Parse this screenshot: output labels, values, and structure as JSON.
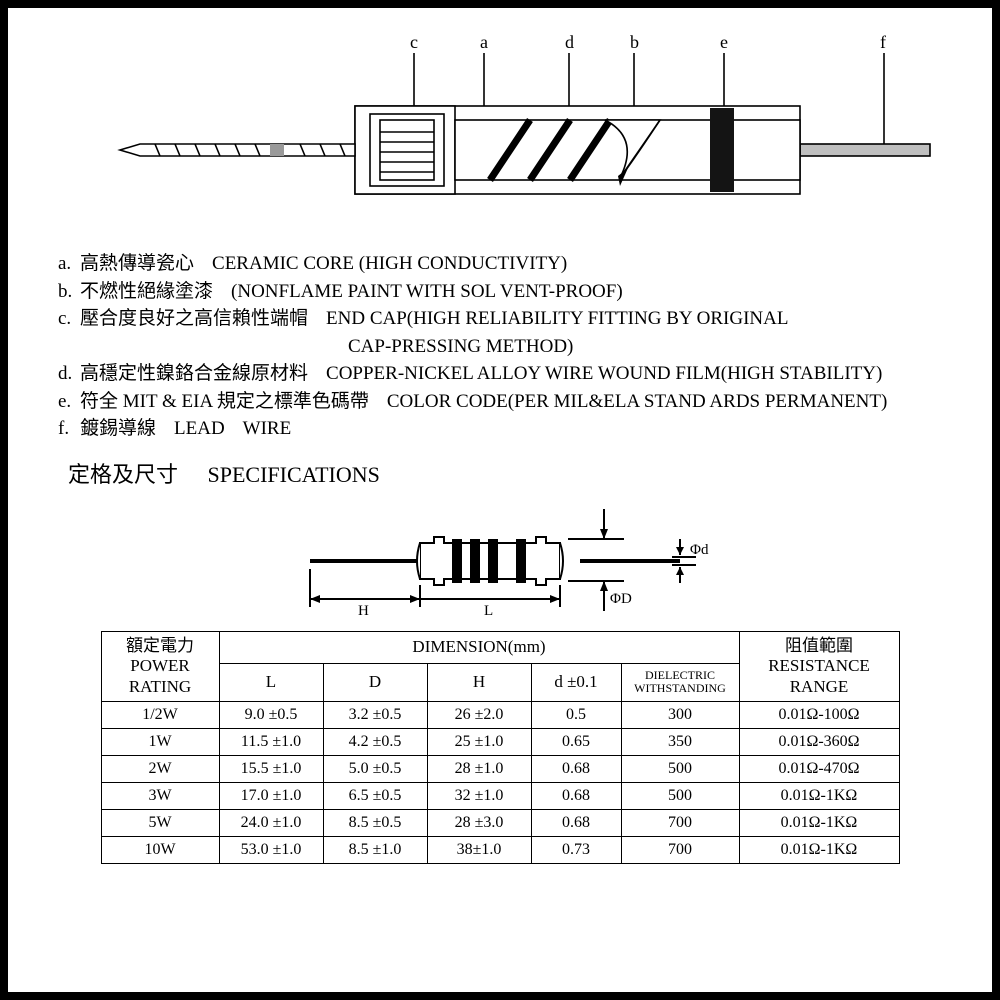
{
  "diagram": {
    "labels": {
      "a": "a",
      "b": "b",
      "c": "c",
      "d": "d",
      "e": "e",
      "f": "f"
    },
    "colors": {
      "body_fill": "#ffffff",
      "cap_fill": "#ffffff",
      "lead_fill": "#bfbfbf",
      "band_dark": "#141414",
      "stroke": "#000000"
    }
  },
  "legend": {
    "a": {
      "key": "a.",
      "cn": "高熱傳導瓷心",
      "en": "CERAMIC CORE (HIGH CONDUCTIVITY)"
    },
    "b": {
      "key": "b.",
      "cn": "不燃性絕緣塗漆",
      "en": "(NONFLAME PAINT WITH SOL VENT-PROOF)"
    },
    "c": {
      "key": "c.",
      "cn": "壓合度良好之高信賴性端帽",
      "en": "END CAP(HIGH RELIABILITY FITTING BY ORIGINAL",
      "en2": "CAP-PRESSING METHOD)"
    },
    "d": {
      "key": "d.",
      "cn": "高穩定性鎳鉻合金線原材料",
      "en": "COPPER-NICKEL ALLOY WIRE WOUND FILM(HIGH STABILITY)"
    },
    "e": {
      "key": "e.",
      "cn": "符全 MIT & EIA 規定之標準色碼帶",
      "en": "COLOR CODE(PER MIL&ELA STAND ARDS PERMANENT)"
    },
    "f": {
      "key": "f.",
      "cn": "鍍錫導線",
      "en1": "LEAD",
      "en2": "WIRE"
    }
  },
  "spec_title": {
    "cn": "定格及尺寸",
    "en": "SPECIFICATIONS"
  },
  "dim_labels": {
    "H": "H",
    "L": "L",
    "D": "ΦD",
    "d": "Φd"
  },
  "table": {
    "hdr_power_cn": "額定電力",
    "hdr_power_en1": "POWER",
    "hdr_power_en2": "RATING",
    "hdr_dim": "DIMENSION(mm)",
    "hdr_L": "L",
    "hdr_D": "D",
    "hdr_H": "H",
    "hdr_d": "d  ±0.1",
    "hdr_dw1": "DIELECTRIC",
    "hdr_dw2": "WITHSTANDING",
    "hdr_res_cn": "阻值範圍",
    "hdr_res_en1": "RESISTANCE",
    "hdr_res_en2": "RANGE",
    "rows": [
      {
        "power": "1/2W",
        "L": "9.0  ±0.5",
        "D": "3.2  ±0.5",
        "H": "26  ±2.0",
        "d": "0.5",
        "dw": "300",
        "range": "0.01Ω-100Ω"
      },
      {
        "power": "1W",
        "L": "11.5  ±1.0",
        "D": "4.2  ±0.5",
        "H": "25  ±1.0",
        "d": "0.65",
        "dw": "350",
        "range": "0.01Ω-360Ω"
      },
      {
        "power": "2W",
        "L": "15.5  ±1.0",
        "D": "5.0  ±0.5",
        "H": "28  ±1.0",
        "d": "0.68",
        "dw": "500",
        "range": "0.01Ω-470Ω"
      },
      {
        "power": "3W",
        "L": "17.0  ±1.0",
        "D": "6.5  ±0.5",
        "H": "32  ±1.0",
        "d": "0.68",
        "dw": "500",
        "range": "0.01Ω-1KΩ"
      },
      {
        "power": "5W",
        "L": "24.0  ±1.0",
        "D": "8.5  ±0.5",
        "H": "28  ±3.0",
        "d": "0.68",
        "dw": "700",
        "range": "0.01Ω-1KΩ"
      },
      {
        "power": "10W",
        "L": "53.0  ±1.0",
        "D": "8.5  ±1.0",
        "H": "38±1.0",
        "d": "0.73",
        "dw": "700",
        "range": "0.01Ω-1KΩ"
      }
    ]
  }
}
